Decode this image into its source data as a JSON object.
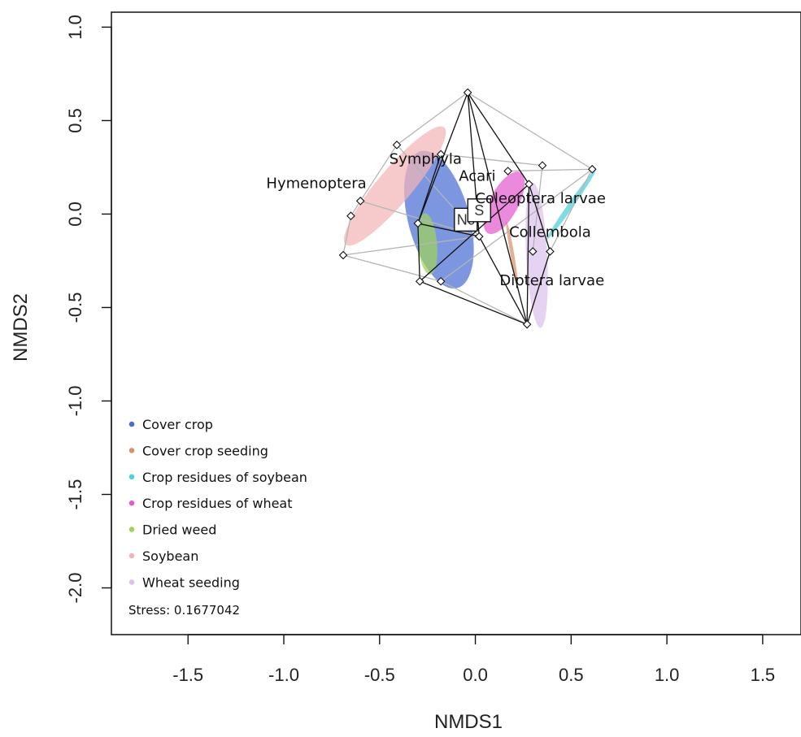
{
  "chart_data": {
    "type": "scatter",
    "title": "",
    "xlabel": "NMDS1",
    "ylabel": "NMDS2",
    "xlim": [
      -1.9,
      1.7
    ],
    "ylim": [
      -2.25,
      1.08
    ],
    "xticks": [
      -1.5,
      -1.0,
      -0.5,
      0.0,
      0.5,
      1.0,
      1.5
    ],
    "xtick_labels": [
      "-1.5",
      "-1.0",
      "-0.5",
      "0.0",
      "0.5",
      "1.0",
      "1.5"
    ],
    "yticks": [
      -2.0,
      -1.5,
      -1.0,
      -0.5,
      0.0,
      0.5,
      1.0
    ],
    "ytick_labels": [
      "-2.0",
      "-1.5",
      "-1.0",
      "-0.5",
      "0.0",
      "0.5",
      "1.0"
    ],
    "grid": false,
    "legend_placement": "bottom-left",
    "stress_text": "Stress: 0.1677042",
    "groups": [
      {
        "name": "Cover crop",
        "color": "#4a6fd4",
        "ellipse": {
          "cx": -0.19,
          "cy": -0.03,
          "rx": 0.37,
          "ry": 0.16,
          "angle_deg": -75
        }
      },
      {
        "name": "Cover crop seeding",
        "color": "#d9926b",
        "ellipse": {
          "cx": 0.19,
          "cy": -0.2,
          "rx": 0.16,
          "ry": 0.01,
          "angle_deg": -80
        }
      },
      {
        "name": "Crop residues of soybean",
        "color": "#4dd0d6",
        "ellipse": {
          "cx": 0.5,
          "cy": 0.05,
          "rx": 0.22,
          "ry": 0.015,
          "angle_deg": 55
        }
      },
      {
        "name": "Crop residues of wheat",
        "color": "#e35ccf",
        "ellipse": {
          "cx": 0.15,
          "cy": 0.06,
          "rx": 0.18,
          "ry": 0.075,
          "angle_deg": 62
        }
      },
      {
        "name": "Dried weed",
        "color": "#9fd35a",
        "ellipse": {
          "cx": -0.25,
          "cy": -0.16,
          "rx": 0.16,
          "ry": 0.05,
          "angle_deg": -85
        }
      },
      {
        "name": "Soybean",
        "color": "#f2b4b6",
        "ellipse": {
          "cx": -0.42,
          "cy": 0.15,
          "rx": 0.4,
          "ry": 0.09,
          "angle_deg": 50
        }
      },
      {
        "name": "Wheat seeding",
        "color": "#dcc2ec",
        "ellipse": {
          "cx": 0.32,
          "cy": -0.22,
          "rx": 0.38,
          "ry": 0.055,
          "angle_deg": -87
        }
      }
    ],
    "sites": [
      {
        "x": -0.04,
        "y": 0.65
      },
      {
        "x": -0.41,
        "y": 0.37
      },
      {
        "x": -0.18,
        "y": 0.32
      },
      {
        "x": -0.6,
        "y": 0.07
      },
      {
        "x": -0.65,
        "y": -0.01
      },
      {
        "x": -0.69,
        "y": -0.22
      },
      {
        "x": -0.3,
        "y": -0.05
      },
      {
        "x": -0.29,
        "y": -0.36
      },
      {
        "x": -0.18,
        "y": -0.36
      },
      {
        "x": 0.02,
        "y": -0.12
      },
      {
        "x": 0.17,
        "y": 0.23
      },
      {
        "x": 0.28,
        "y": 0.16
      },
      {
        "x": 0.35,
        "y": 0.26
      },
      {
        "x": 0.61,
        "y": 0.24
      },
      {
        "x": 0.39,
        "y": -0.2
      },
      {
        "x": 0.3,
        "y": -0.2
      },
      {
        "x": 0.27,
        "y": -0.59
      }
    ],
    "hull_black": [
      0,
      11,
      14,
      16,
      7,
      6,
      0
    ],
    "hull_black_inner": [
      [
        0,
        9
      ],
      [
        0,
        16
      ],
      [
        7,
        11
      ],
      [
        2,
        6
      ],
      [
        6,
        9
      ],
      [
        11,
        16
      ],
      [
        9,
        16
      ]
    ],
    "hull_gray": [
      1,
      0,
      13,
      14,
      16,
      8,
      5,
      4,
      3,
      1
    ],
    "hull_gray_inner": [
      [
        1,
        9
      ],
      [
        3,
        9
      ],
      [
        5,
        9
      ],
      [
        10,
        13
      ],
      [
        12,
        15
      ],
      [
        8,
        13
      ],
      [
        2,
        12
      ]
    ],
    "species": [
      {
        "name": "Hymenoptera",
        "x": -0.83,
        "y": 0.16
      },
      {
        "name": "Symphyla",
        "x": -0.26,
        "y": 0.29
      },
      {
        "name": "Acari",
        "x": 0.01,
        "y": 0.2
      },
      {
        "name": "Coleoptera larvae",
        "x": 0.34,
        "y": 0.08
      },
      {
        "name": "Collembola",
        "x": 0.39,
        "y": -0.1
      },
      {
        "name": "Diptera larvae",
        "x": 0.4,
        "y": -0.36
      }
    ],
    "centroid_boxes": [
      {
        "label": "Nc",
        "x": -0.05,
        "y": -0.03
      },
      {
        "label": "S",
        "x": 0.02,
        "y": 0.02
      }
    ]
  }
}
